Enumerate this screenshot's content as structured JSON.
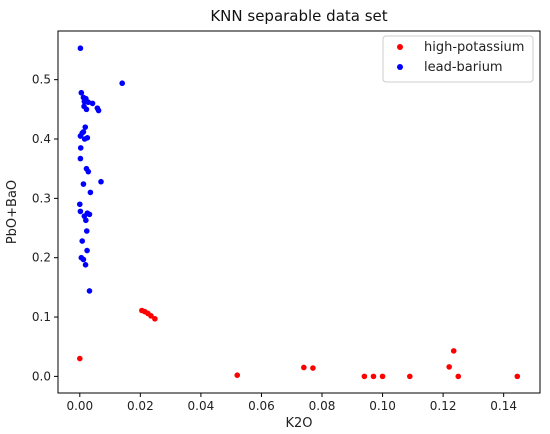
{
  "chart_data": {
    "type": "scatter",
    "title": "KNN separable data set",
    "xlabel": "K2O",
    "ylabel": "PbO+BaO",
    "xlim": [
      -0.0072,
      0.152
    ],
    "ylim": [
      -0.028,
      0.582
    ],
    "x_ticks": [
      0.0,
      0.02,
      0.04,
      0.06,
      0.08,
      0.1,
      0.12,
      0.14
    ],
    "x_tick_labels": [
      "0.00",
      "0.02",
      "0.04",
      "0.06",
      "0.08",
      "0.10",
      "0.12",
      "0.14"
    ],
    "y_ticks": [
      0.0,
      0.1,
      0.2,
      0.3,
      0.4,
      0.5
    ],
    "y_tick_labels": [
      "0.0",
      "0.1",
      "0.2",
      "0.3",
      "0.4",
      "0.5"
    ],
    "grid": false,
    "legend_position": "top-right",
    "series": [
      {
        "name": "high-potassium",
        "color": "#ff0000",
        "points": [
          [
            0.0,
            0.03
          ],
          [
            0.0205,
            0.111
          ],
          [
            0.0215,
            0.109
          ],
          [
            0.0225,
            0.106
          ],
          [
            0.0235,
            0.102
          ],
          [
            0.0248,
            0.097
          ],
          [
            0.052,
            0.002
          ],
          [
            0.074,
            0.015
          ],
          [
            0.077,
            0.014
          ],
          [
            0.094,
            0.0
          ],
          [
            0.097,
            0.0
          ],
          [
            0.1,
            0.0
          ],
          [
            0.109,
            0.0
          ],
          [
            0.122,
            0.016
          ],
          [
            0.1235,
            0.043
          ],
          [
            0.125,
            0.0
          ],
          [
            0.1445,
            0.0
          ]
        ]
      },
      {
        "name": "lead-barium",
        "color": "#0000ff",
        "points": [
          [
            0.0002,
            0.553
          ],
          [
            0.014,
            0.494
          ],
          [
            0.0005,
            0.478
          ],
          [
            0.0012,
            0.47
          ],
          [
            0.002,
            0.468
          ],
          [
            0.0015,
            0.463
          ],
          [
            0.0028,
            0.462
          ],
          [
            0.0042,
            0.46
          ],
          [
            0.0058,
            0.452
          ],
          [
            0.0062,
            0.448
          ],
          [
            0.0014,
            0.455
          ],
          [
            0.0022,
            0.45
          ],
          [
            0.0018,
            0.42
          ],
          [
            0.0008,
            0.41
          ],
          [
            0.0012,
            0.412
          ],
          [
            0.0002,
            0.405
          ],
          [
            0.0016,
            0.4
          ],
          [
            0.0025,
            0.402
          ],
          [
            0.0003,
            0.385
          ],
          [
            0.0002,
            0.367
          ],
          [
            0.0022,
            0.35
          ],
          [
            0.0028,
            0.345
          ],
          [
            0.0012,
            0.324
          ],
          [
            0.007,
            0.328
          ],
          [
            0.0035,
            0.31
          ],
          [
            0.0,
            0.29
          ],
          [
            0.0002,
            0.278
          ],
          [
            0.0025,
            0.275
          ],
          [
            0.0015,
            0.27
          ],
          [
            0.0032,
            0.273
          ],
          [
            0.002,
            0.263
          ],
          [
            0.0023,
            0.245
          ],
          [
            0.0008,
            0.228
          ],
          [
            0.0024,
            0.212
          ],
          [
            0.0005,
            0.2
          ],
          [
            0.0012,
            0.197
          ],
          [
            0.0019,
            0.188
          ],
          [
            0.0032,
            0.144
          ]
        ]
      }
    ]
  }
}
